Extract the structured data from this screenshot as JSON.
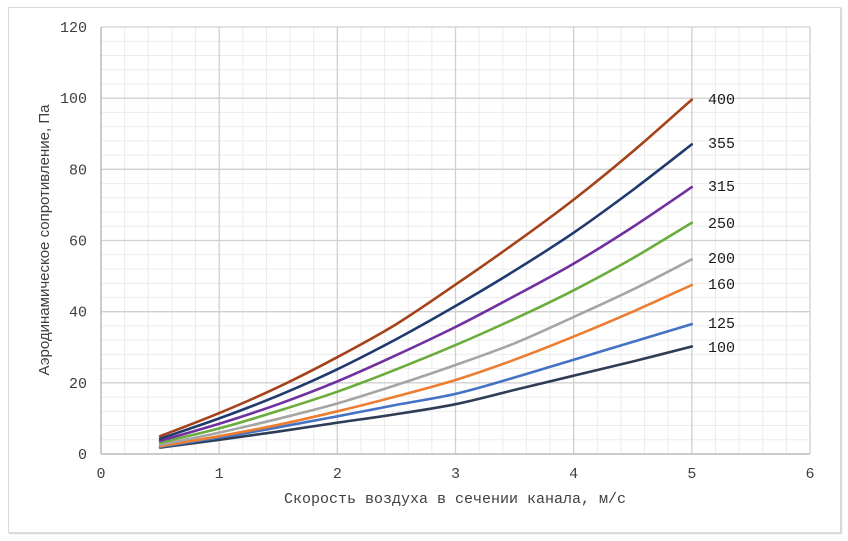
{
  "chart_data": {
    "type": "line",
    "title": "",
    "xlabel": "Скорость воздуха в сечении канала, м/с",
    "ylabel": "Аэродинамическое сопротивление, Па",
    "xlim": [
      0,
      6
    ],
    "ylim": [
      0,
      120
    ],
    "x_ticks": [
      "0",
      "1",
      "2",
      "3",
      "4",
      "5",
      "6"
    ],
    "y_ticks": [
      "0",
      "20",
      "40",
      "60",
      "80",
      "100",
      "120"
    ],
    "grid": true,
    "legend_position": "inline labels at right end of each line",
    "x": [
      0.5,
      1,
      1.5,
      2,
      2.5,
      3,
      3.5,
      4,
      4.5,
      5
    ],
    "series": [
      {
        "name": "400",
        "color": "#a5421a",
        "values": [
          5.0,
          11.5,
          18.8,
          27.2,
          36.5,
          47.6,
          59.2,
          71.5,
          85.0,
          99.6
        ]
      },
      {
        "name": "355",
        "color": "#1f3a6e",
        "values": [
          4.3,
          10.0,
          16.4,
          23.8,
          32.3,
          41.6,
          51.5,
          62.2,
          74.2,
          87.0
        ]
      },
      {
        "name": "315",
        "color": "#7030a0",
        "values": [
          3.7,
          8.5,
          14.0,
          20.4,
          27.8,
          35.7,
          44.4,
          53.5,
          63.8,
          75.0
        ]
      },
      {
        "name": "250",
        "color": "#6aad3c",
        "values": [
          3.2,
          7.2,
          12.1,
          17.5,
          23.8,
          30.6,
          38.0,
          46.0,
          55.0,
          65.0
        ]
      },
      {
        "name": "200",
        "color": "#a5a5a5",
        "values": [
          2.6,
          6.0,
          9.9,
          14.2,
          19.4,
          25.0,
          31.1,
          38.5,
          46.2,
          54.7
        ]
      },
      {
        "name": "160",
        "color": "#ed7d31",
        "values": [
          2.2,
          5.0,
          8.2,
          12.0,
          16.2,
          20.8,
          26.5,
          33.0,
          40.0,
          47.5
        ]
      },
      {
        "name": "125",
        "color": "#4472c4",
        "values": [
          2.0,
          4.6,
          7.5,
          10.6,
          13.8,
          16.9,
          21.5,
          26.5,
          31.5,
          36.5
        ]
      },
      {
        "name": "100",
        "color": "#2e3d55",
        "values": [
          1.8,
          4.0,
          6.3,
          8.8,
          11.2,
          14.0,
          18.0,
          22.0,
          26.0,
          30.2
        ]
      }
    ]
  },
  "labels": {
    "xlabel": "Скорость воздуха в сечении канала, м/с",
    "ylabel": "Аэродинамическое сопротивление, Па"
  }
}
